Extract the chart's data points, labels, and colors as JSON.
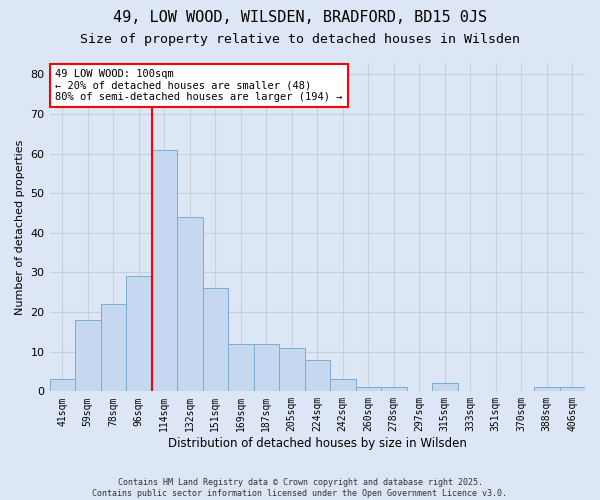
{
  "title1": "49, LOW WOOD, WILSDEN, BRADFORD, BD15 0JS",
  "title2": "Size of property relative to detached houses in Wilsden",
  "xlabel": "Distribution of detached houses by size in Wilsden",
  "ylabel": "Number of detached properties",
  "annotation_title": "49 LOW WOOD: 100sqm",
  "annotation_line1": "← 20% of detached houses are smaller (48)",
  "annotation_line2": "80% of semi-detached houses are larger (194) →",
  "bar_labels": [
    "41sqm",
    "59sqm",
    "78sqm",
    "96sqm",
    "114sqm",
    "132sqm",
    "151sqm",
    "169sqm",
    "187sqm",
    "205sqm",
    "224sqm",
    "242sqm",
    "260sqm",
    "278sqm",
    "297sqm",
    "315sqm",
    "333sqm",
    "351sqm",
    "370sqm",
    "388sqm",
    "406sqm"
  ],
  "bar_values": [
    3,
    18,
    22,
    29,
    61,
    44,
    26,
    12,
    12,
    11,
    8,
    3,
    1,
    1,
    0,
    2,
    0,
    0,
    0,
    1,
    1
  ],
  "bar_color": "#c5d8ef",
  "bar_edge_color": "#7aadd4",
  "vline_x": 3.5,
  "vline_color": "red",
  "ylim": [
    0,
    83
  ],
  "yticks": [
    0,
    10,
    20,
    30,
    40,
    50,
    60,
    70,
    80
  ],
  "grid_color": "#c8d0e0",
  "bg_color": "#dce6f5",
  "annotation_box_color": "white",
  "annotation_box_edge": "red",
  "footer": "Contains HM Land Registry data © Crown copyright and database right 2025.\nContains public sector information licensed under the Open Government Licence v3.0.",
  "title1_fontsize": 11,
  "title2_fontsize": 9.5,
  "xlabel_fontsize": 8.5,
  "ylabel_fontsize": 8,
  "annot_fontsize": 7.5,
  "tick_fontsize": 7,
  "ytick_fontsize": 8
}
